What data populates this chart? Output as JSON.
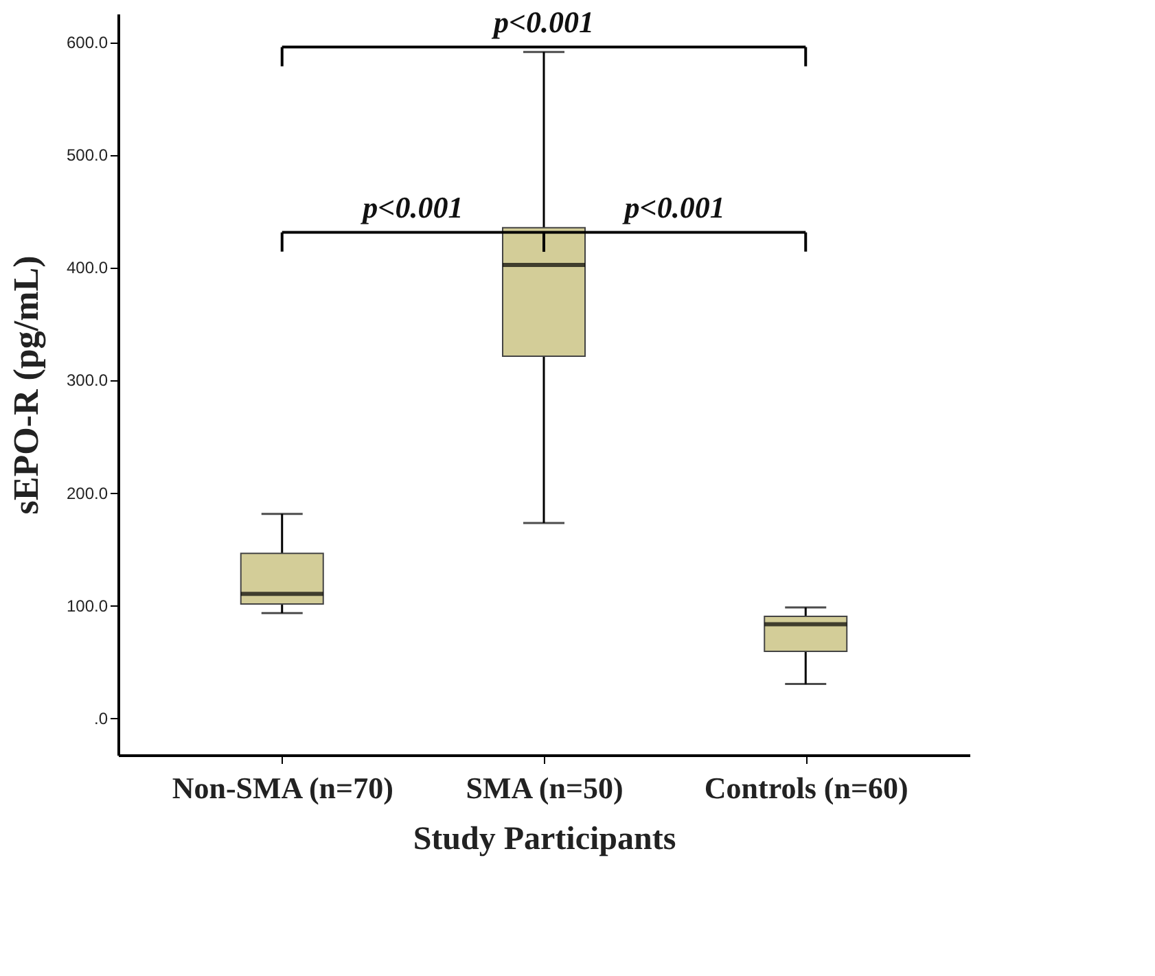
{
  "chart_data": {
    "type": "box",
    "xlabel": "Study Participants",
    "ylabel": "sEPO-R (pg/mL)",
    "categories": [
      "Non-SMA (n=70)",
      "SMA (n=50)",
      "Controls (n=60)"
    ],
    "boxes": [
      {
        "low": 93,
        "q1": 101,
        "median": 110,
        "q3": 146,
        "high": 181
      },
      {
        "low": 173,
        "q1": 321,
        "median": 402,
        "q3": 435,
        "high": 591
      },
      {
        "low": 30,
        "q1": 59,
        "median": 83,
        "q3": 90,
        "high": 98
      }
    ],
    "color": "#d3cd98",
    "ylim": [
      -33,
      625
    ],
    "yticks": [
      {
        "value": 0,
        "label": ".0"
      },
      {
        "value": 100,
        "label": "100.0"
      },
      {
        "value": 200,
        "label": "200.0"
      },
      {
        "value": 300,
        "label": "300.0"
      },
      {
        "value": 400,
        "label": "400.0"
      },
      {
        "value": 500,
        "label": "500.0"
      },
      {
        "value": 600,
        "label": "600.0"
      }
    ],
    "grid": false,
    "annotations": [
      "p<0.001",
      "p<0.001",
      "p<0.001"
    ]
  }
}
